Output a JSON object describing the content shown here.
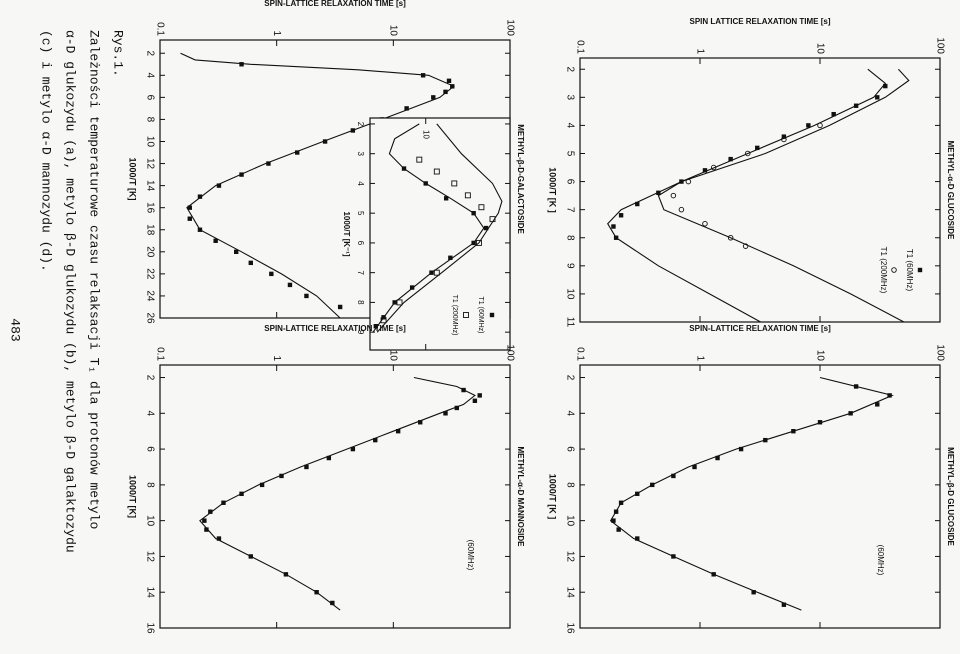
{
  "chart_data": [
    {
      "type": "scatter",
      "title": "METHYL-α-D GLUCOSIDE",
      "xlabel": "1000/T [K ]",
      "ylabel": "SPIN LATTICE RELAXATION TIME [s]",
      "log_y": true,
      "color": "#111",
      "xlim": [
        1.6,
        11
      ],
      "xticks": [
        2,
        3,
        4,
        5,
        6,
        7,
        8,
        9,
        10,
        11
      ],
      "ylim": [
        0.1,
        100
      ],
      "yticks": [
        0.1,
        1,
        10,
        100
      ],
      "series": [
        {
          "name": "T1 (60MHz)",
          "marker": "square",
          "x": [
            2.6,
            3,
            3.3,
            3.6,
            4,
            4.4,
            4.8,
            5.2,
            5.6,
            6,
            6.4,
            6.8,
            7.2,
            7.6,
            8
          ],
          "values": [
            35,
            30,
            20,
            13,
            8,
            5,
            3,
            1.8,
            1.1,
            0.7,
            0.45,
            0.3,
            0.22,
            0.19,
            0.2
          ]
        },
        {
          "name": "T1 (200MHz)",
          "marker": "circle",
          "x": [
            4,
            4.5,
            5,
            5.5,
            6,
            6.5,
            7,
            7.5,
            8,
            8.3
          ],
          "values": [
            10,
            5,
            2.5,
            1.3,
            0.8,
            0.6,
            0.7,
            1.1,
            1.8,
            2.4
          ]
        },
        {
          "marker": "line",
          "x": [
            2,
            2.5,
            3,
            4,
            5,
            6,
            7,
            7.5,
            8,
            9,
            10,
            11
          ],
          "values": [
            25,
            35,
            28,
            9,
            2.5,
            0.7,
            0.22,
            0.17,
            0.2,
            0.45,
            1.2,
            3.2
          ]
        },
        {
          "marker": "line",
          "x": [
            2,
            2.4,
            3,
            4,
            5,
            6,
            6.5,
            7,
            8,
            9,
            10,
            11
          ],
          "values": [
            45,
            55,
            35,
            12,
            3.5,
            0.7,
            0.45,
            0.5,
            1.8,
            6,
            18,
            50
          ]
        }
      ]
    },
    {
      "type": "scatter",
      "title": "METHYL-β-D GLUCOSIDE",
      "xlabel": "1000/T [K ]",
      "ylabel": "SPIN-LATTICE RELAXATION TIME [s]",
      "annotation": "(60MHz)",
      "log_y": true,
      "color": "#111",
      "xlim": [
        1.3,
        16
      ],
      "xticks": [
        2,
        4,
        6,
        8,
        10,
        12,
        14,
        16
      ],
      "ylim": [
        0.1,
        100
      ],
      "yticks": [
        0.1,
        1,
        10,
        100
      ],
      "series": [
        {
          "marker": "square",
          "x": [
            2.5,
            3,
            3.5,
            4,
            4.5,
            5,
            5.5,
            6,
            6.5,
            7,
            7.5,
            8,
            8.5,
            9,
            9.5,
            10,
            10.5,
            11,
            12,
            13,
            14,
            14.7
          ],
          "values": [
            20,
            38,
            30,
            18,
            10,
            6,
            3.5,
            2.2,
            1.4,
            0.9,
            0.6,
            0.4,
            0.3,
            0.22,
            0.2,
            0.19,
            0.21,
            0.3,
            0.6,
            1.3,
            2.8,
            5
          ]
        },
        {
          "marker": "line",
          "x": [
            2,
            3,
            4,
            5,
            6,
            7,
            8,
            9,
            10,
            11,
            12,
            13,
            14,
            15
          ],
          "values": [
            10,
            40,
            18,
            6,
            2,
            0.8,
            0.4,
            0.22,
            0.18,
            0.28,
            0.6,
            1.3,
            3,
            7
          ]
        }
      ]
    },
    {
      "type": "scatter",
      "title": "METHYL-β-D-GALACTOSIDE",
      "xlabel": "1000/T [K]",
      "ylabel": "SPIN-LATTICE RELAXATION TIME [s]",
      "log_y": true,
      "color": "#111",
      "xlim": [
        0.8,
        26
      ],
      "xticks": [
        2,
        4,
        6,
        8,
        10,
        12,
        14,
        16,
        18,
        20,
        22,
        24,
        26
      ],
      "ylim": [
        0.1,
        100
      ],
      "yticks": [
        0.1,
        1,
        10,
        100
      ],
      "series": [
        {
          "marker": "square",
          "x": [
            3,
            4,
            4.5,
            5,
            5.5,
            6,
            7,
            8,
            9,
            10,
            11,
            12,
            13,
            14,
            15,
            16,
            17,
            18,
            19,
            20,
            21,
            22,
            23,
            24,
            25
          ],
          "values": [
            0.5,
            18,
            30,
            32,
            28,
            22,
            13,
            8,
            4.5,
            2.6,
            1.5,
            0.85,
            0.5,
            0.32,
            0.22,
            0.18,
            0.18,
            0.22,
            0.3,
            0.45,
            0.6,
            0.9,
            1.3,
            1.8,
            3.5
          ]
        },
        {
          "marker": "line",
          "x": [
            2,
            2.6,
            3,
            3.5,
            4,
            5,
            6,
            8,
            10,
            12,
            14,
            16,
            18,
            20,
            22,
            24,
            26
          ],
          "values": [
            0.15,
            0.2,
            0.6,
            5,
            20,
            33,
            25,
            8,
            2.5,
            0.8,
            0.3,
            0.17,
            0.22,
            0.5,
            1.1,
            2.2,
            3.5
          ]
        }
      ]
    },
    {
      "type": "scatter",
      "xlabel": "1000/T [K⁻¹]",
      "log_y": true,
      "color": "#111",
      "xlim": [
        1.8,
        9.6
      ],
      "xticks": [
        2,
        3,
        4,
        5,
        6,
        7,
        8,
        9
      ],
      "ylim": [
        4,
        40
      ],
      "yticks": [
        10
      ],
      "series": [
        {
          "name": "T1 (60MHz)",
          "marker": "square",
          "x": [
            3.5,
            4,
            4.5,
            5,
            5.5,
            6,
            6.5,
            7,
            7.5,
            8,
            8.5,
            8.8
          ],
          "values": [
            7,
            10,
            14,
            22,
            27,
            22,
            15,
            11,
            8,
            6,
            5,
            4.4
          ]
        },
        {
          "name": "T1 (200MHz)",
          "marker": "open-square",
          "x": [
            3.2,
            3.6,
            4,
            4.4,
            4.8,
            5.2,
            6,
            7,
            8,
            8.6
          ],
          "values": [
            9,
            12,
            16,
            20,
            25,
            30,
            24,
            12,
            6.5,
            5
          ]
        },
        {
          "marker": "line",
          "x": [
            2,
            2.5,
            3,
            3.5,
            4,
            4.5,
            5,
            5.5,
            6,
            7,
            8,
            9
          ],
          "values": [
            9,
            6,
            5.5,
            7,
            10,
            15,
            22,
            26,
            22,
            11,
            6,
            4.2
          ]
        },
        {
          "marker": "line",
          "x": [
            2,
            3,
            4,
            4.6,
            5,
            6,
            7,
            8,
            9
          ],
          "values": [
            12,
            18,
            30,
            35,
            33,
            24,
            13,
            7,
            4.5
          ]
        }
      ]
    },
    {
      "type": "scatter",
      "title": "METHYL-α-D MANNOSIDE",
      "xlabel": "1000/T [K]",
      "ylabel": "SPIN-LATTICE RELAXATION TIME [s]",
      "annotation": "(60MHz)",
      "log_y": true,
      "color": "#111",
      "xlim": [
        1.3,
        16
      ],
      "xticks": [
        2,
        4,
        6,
        8,
        10,
        12,
        14,
        16
      ],
      "ylim": [
        0.1,
        100
      ],
      "yticks": [
        0.1,
        1,
        10,
        100
      ],
      "series": [
        {
          "marker": "square",
          "x": [
            2.7,
            3,
            3.3,
            3.7,
            4,
            4.5,
            5,
            5.5,
            6,
            6.5,
            7,
            7.5,
            8,
            8.5,
            9,
            9.5,
            10,
            10.5,
            11,
            12,
            13,
            14,
            14.6
          ],
          "values": [
            40,
            55,
            50,
            35,
            28,
            17,
            11,
            7,
            4.5,
            2.8,
            1.8,
            1.1,
            0.75,
            0.5,
            0.35,
            0.27,
            0.24,
            0.25,
            0.32,
            0.6,
            1.2,
            2.2,
            3
          ]
        },
        {
          "marker": "line",
          "x": [
            2,
            2.5,
            3,
            3.5,
            4,
            5,
            6,
            7,
            8,
            9,
            10,
            11,
            12,
            13,
            14,
            15
          ],
          "values": [
            15,
            35,
            50,
            40,
            25,
            10,
            4,
            1.6,
            0.7,
            0.35,
            0.22,
            0.3,
            0.6,
            1.2,
            2.2,
            3.5
          ]
        }
      ]
    }
  ],
  "caption": {
    "label": "Rys.1.",
    "lines": [
      "Zależności temperaturowe czasu relaksacji T₁ dla protonów metylo",
      "α-D glukozydu (a), metylo β-D glukozydu (b), metylo β-D galaktozydu",
      "(c) i metylo α-D mannozydu (d)."
    ]
  },
  "page_number": "483"
}
